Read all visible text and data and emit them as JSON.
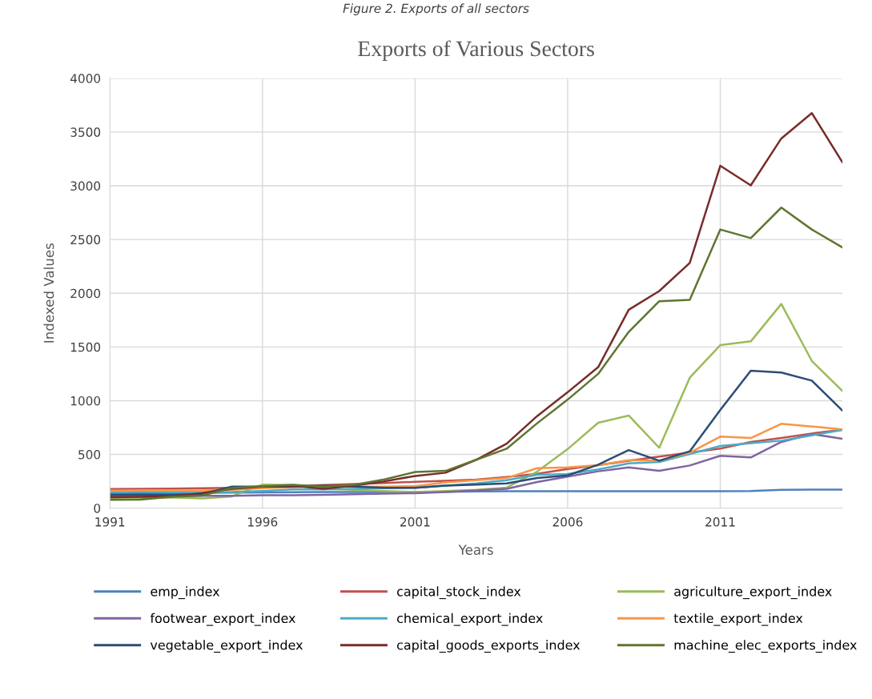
{
  "chart_data": {
    "type": "line",
    "title": "Exports of Various Sectors",
    "xlabel": "Years",
    "ylabel": "Indexed Values",
    "annotations": [
      "Figure 2. Exports of all sectors"
    ],
    "x": [
      1991,
      1992,
      1993,
      1994,
      1995,
      1996,
      1997,
      1998,
      1999,
      2000,
      2001,
      2002,
      2003,
      2004,
      2005,
      2006,
      2007,
      2008,
      2009,
      2010,
      2011,
      2012,
      2013,
      2014,
      2015
    ],
    "xlim": [
      1991,
      2015
    ],
    "xticks": [
      1991,
      1996,
      2001,
      2006,
      2011
    ],
    "ylim": [
      0,
      4000
    ],
    "yticks": [
      0,
      500,
      1000,
      1500,
      2000,
      2500,
      3000,
      3500,
      4000
    ],
    "grid": true,
    "legend": "bottom",
    "marker": "none",
    "line_style": "solid",
    "series": [
      {
        "name": "emp_index",
        "color": "#4f81bd",
        "values": [
          135,
          138,
          140,
          142,
          144,
          146,
          148,
          150,
          150,
          150,
          150,
          152,
          155,
          157,
          158,
          158,
          158,
          158,
          158,
          158,
          158,
          160,
          170,
          172,
          172
        ]
      },
      {
        "name": "capital_stock_index",
        "color": "#c0504d",
        "values": [
          178,
          180,
          182,
          185,
          190,
          195,
          205,
          215,
          225,
          235,
          245,
          255,
          265,
          290,
          320,
          365,
          400,
          440,
          480,
          517,
          554,
          616,
          653,
          695,
          730
        ]
      },
      {
        "name": "agriculture_export_index",
        "color": "#9bbb59",
        "values": [
          90,
          92,
          100,
          90,
          110,
          220,
          215,
          180,
          170,
          160,
          150,
          160,
          170,
          192,
          340,
          550,
          795,
          862,
          562,
          1214,
          1517,
          1552,
          1900,
          1370,
          1091
        ]
      },
      {
        "name": "footwear_export_index",
        "color": "#8064a2",
        "values": [
          112,
          115,
          115,
          115,
          115,
          120,
          120,
          125,
          130,
          135,
          140,
          150,
          165,
          180,
          243,
          293,
          343,
          380,
          348,
          397,
          487,
          472,
          616,
          690,
          646
        ]
      },
      {
        "name": "chemical_export_index",
        "color": "#4bacc6",
        "values": [
          150,
          152,
          150,
          150,
          150,
          160,
          175,
          175,
          180,
          185,
          190,
          210,
          230,
          260,
          310,
          318,
          360,
          417,
          430,
          504,
          579,
          604,
          628,
          678,
          728
        ]
      },
      {
        "name": "textile_export_index",
        "color": "#f79646",
        "values": [
          164,
          166,
          165,
          165,
          170,
          185,
          195,
          200,
          200,
          200,
          205,
          240,
          260,
          280,
          372,
          380,
          400,
          447,
          442,
          517,
          666,
          653,
          785,
          760,
          733
        ]
      },
      {
        "name": "vegetable_export_index",
        "color": "#2c4d75",
        "values": [
          124,
          126,
          125,
          130,
          200,
          200,
          200,
          210,
          200,
          190,
          190,
          210,
          220,
          230,
          280,
          305,
          405,
          541,
          442,
          529,
          914,
          1279,
          1262,
          1187,
          909
        ]
      },
      {
        "name": "capital_goods_exports_index",
        "color": "#772c2a",
        "values": [
          102,
          105,
          110,
          140,
          180,
          200,
          210,
          180,
          210,
          250,
          300,
          330,
          450,
          600,
          857,
          1079,
          1312,
          1846,
          2020,
          2282,
          3186,
          3004,
          3440,
          3676,
          3220
        ]
      },
      {
        "name": "machine_elec_exports_index",
        "color": "#5f7530",
        "values": [
          78,
          80,
          105,
          117,
          187,
          205,
          217,
          200,
          217,
          267,
          337,
          347,
          450,
          553,
          790,
          1010,
          1250,
          1640,
          1926,
          1938,
          2593,
          2513,
          2797,
          2593,
          2426
        ]
      }
    ]
  }
}
